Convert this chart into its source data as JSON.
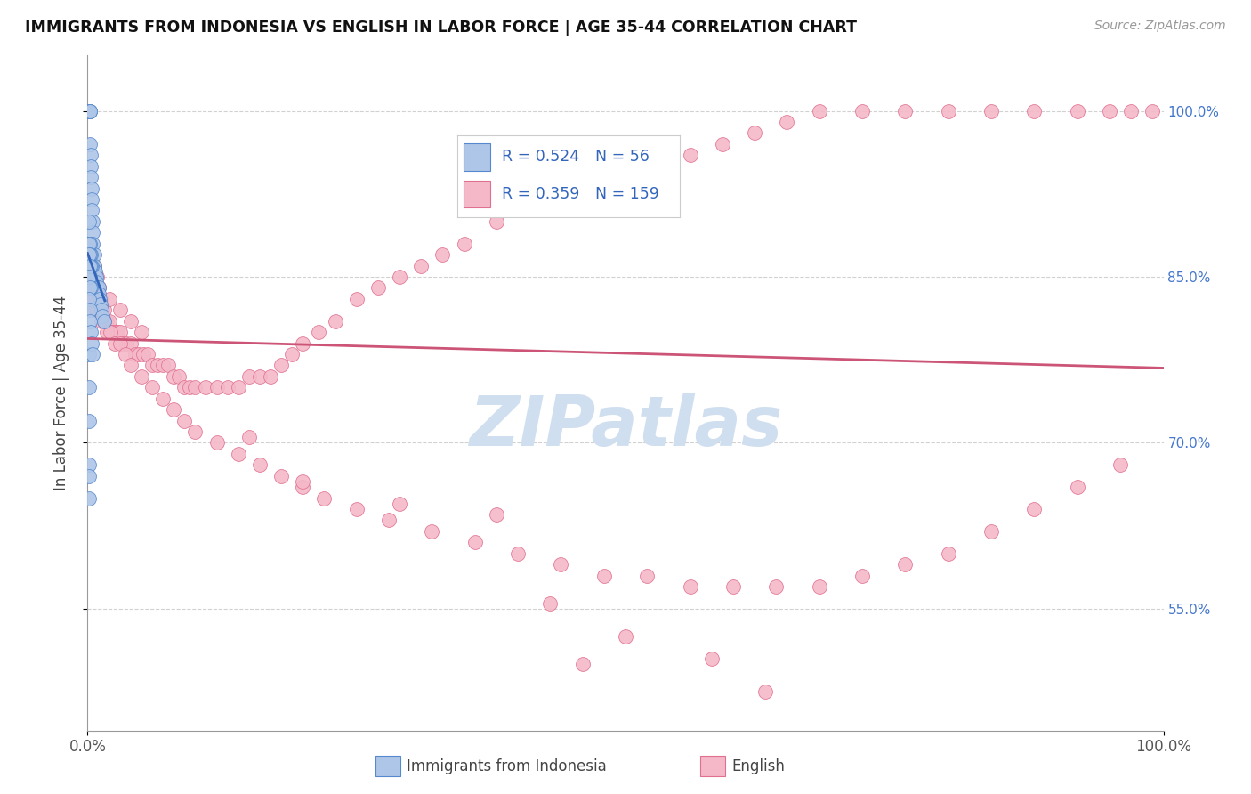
{
  "title": "IMMIGRANTS FROM INDONESIA VS ENGLISH IN LABOR FORCE | AGE 35-44 CORRELATION CHART",
  "source": "Source: ZipAtlas.com",
  "ylabel": "In Labor Force | Age 35-44",
  "xmin": 0.0,
  "xmax": 1.0,
  "ymin": 0.44,
  "ymax": 1.05,
  "ytick_values": [
    0.55,
    0.7,
    0.85,
    1.0
  ],
  "right_ytick_labels": [
    "100.0%",
    "85.0%",
    "70.0%",
    "55.0%"
  ],
  "right_ytick_values": [
    1.0,
    0.85,
    0.7,
    0.55
  ],
  "legend_r_blue": "R = 0.524",
  "legend_n_blue": "N = 56",
  "legend_r_pink": "R = 0.359",
  "legend_n_pink": "N = 159",
  "blue_fill": "#aec6e8",
  "blue_edge": "#5588cc",
  "pink_fill": "#f4b8c8",
  "pink_edge": "#e07090",
  "blue_line_color": "#3366bb",
  "pink_line_color": "#cc5577",
  "legend_text_color": "#3366bb",
  "title_color": "#111111",
  "bg_color": "#ffffff",
  "grid_color": "#cccccc",
  "watermark_color": "#d0dff0",
  "right_tick_color": "#4477cc",
  "blue_x": [
    0.001,
    0.001,
    0.001,
    0.002,
    0.002,
    0.002,
    0.002,
    0.003,
    0.003,
    0.003,
    0.004,
    0.004,
    0.004,
    0.005,
    0.005,
    0.005,
    0.006,
    0.006,
    0.007,
    0.007,
    0.008,
    0.008,
    0.009,
    0.01,
    0.01,
    0.011,
    0.012,
    0.013,
    0.014,
    0.015,
    0.001,
    0.002,
    0.003,
    0.004,
    0.001,
    0.002,
    0.003,
    0.001,
    0.002,
    0.003,
    0.001,
    0.002,
    0.001,
    0.002,
    0.001,
    0.001,
    0.001,
    0.001,
    0.001,
    0.001,
    0.001,
    0.002,
    0.002,
    0.003,
    0.004,
    0.005
  ],
  "blue_y": [
    1.0,
    1.0,
    1.0,
    1.0,
    1.0,
    1.0,
    0.97,
    0.96,
    0.95,
    0.94,
    0.93,
    0.92,
    0.91,
    0.9,
    0.89,
    0.88,
    0.87,
    0.86,
    0.855,
    0.85,
    0.85,
    0.845,
    0.84,
    0.84,
    0.835,
    0.83,
    0.825,
    0.82,
    0.815,
    0.81,
    0.9,
    0.88,
    0.87,
    0.86,
    0.88,
    0.87,
    0.86,
    0.86,
    0.85,
    0.84,
    0.87,
    0.86,
    0.85,
    0.84,
    0.78,
    0.75,
    0.72,
    0.68,
    0.67,
    0.65,
    0.83,
    0.82,
    0.81,
    0.8,
    0.79,
    0.78
  ],
  "pink_x": [
    0.001,
    0.001,
    0.001,
    0.001,
    0.001,
    0.002,
    0.002,
    0.002,
    0.002,
    0.002,
    0.003,
    0.003,
    0.003,
    0.003,
    0.004,
    0.004,
    0.004,
    0.005,
    0.005,
    0.005,
    0.006,
    0.006,
    0.006,
    0.007,
    0.007,
    0.008,
    0.008,
    0.009,
    0.009,
    0.01,
    0.01,
    0.011,
    0.012,
    0.012,
    0.013,
    0.014,
    0.015,
    0.016,
    0.017,
    0.018,
    0.02,
    0.022,
    0.024,
    0.026,
    0.028,
    0.03,
    0.033,
    0.036,
    0.04,
    0.044,
    0.048,
    0.052,
    0.056,
    0.06,
    0.065,
    0.07,
    0.075,
    0.08,
    0.085,
    0.09,
    0.095,
    0.1,
    0.11,
    0.12,
    0.13,
    0.14,
    0.15,
    0.16,
    0.17,
    0.18,
    0.19,
    0.2,
    0.215,
    0.23,
    0.25,
    0.27,
    0.29,
    0.31,
    0.33,
    0.35,
    0.38,
    0.41,
    0.44,
    0.47,
    0.5,
    0.53,
    0.56,
    0.59,
    0.62,
    0.65,
    0.68,
    0.72,
    0.76,
    0.8,
    0.84,
    0.88,
    0.92,
    0.95,
    0.97,
    0.99,
    0.003,
    0.005,
    0.007,
    0.009,
    0.011,
    0.013,
    0.015,
    0.018,
    0.021,
    0.025,
    0.03,
    0.035,
    0.04,
    0.05,
    0.06,
    0.07,
    0.08,
    0.09,
    0.1,
    0.12,
    0.14,
    0.16,
    0.18,
    0.2,
    0.22,
    0.25,
    0.28,
    0.32,
    0.36,
    0.4,
    0.44,
    0.48,
    0.52,
    0.56,
    0.6,
    0.64,
    0.68,
    0.72,
    0.76,
    0.8,
    0.84,
    0.88,
    0.92,
    0.96,
    0.005,
    0.01,
    0.02,
    0.03,
    0.04,
    0.05,
    0.5,
    0.63,
    0.43,
    0.38,
    0.29,
    0.2,
    0.15,
    0.58,
    0.46
  ],
  "pink_y": [
    0.88,
    0.87,
    0.86,
    0.85,
    0.84,
    0.88,
    0.87,
    0.86,
    0.85,
    0.84,
    0.87,
    0.86,
    0.85,
    0.84,
    0.86,
    0.85,
    0.84,
    0.86,
    0.85,
    0.84,
    0.86,
    0.85,
    0.84,
    0.85,
    0.84,
    0.85,
    0.84,
    0.85,
    0.84,
    0.84,
    0.83,
    0.83,
    0.83,
    0.82,
    0.82,
    0.82,
    0.82,
    0.81,
    0.81,
    0.81,
    0.81,
    0.8,
    0.8,
    0.8,
    0.8,
    0.8,
    0.79,
    0.79,
    0.79,
    0.78,
    0.78,
    0.78,
    0.78,
    0.77,
    0.77,
    0.77,
    0.77,
    0.76,
    0.76,
    0.75,
    0.75,
    0.75,
    0.75,
    0.75,
    0.75,
    0.75,
    0.76,
    0.76,
    0.76,
    0.77,
    0.78,
    0.79,
    0.8,
    0.81,
    0.83,
    0.84,
    0.85,
    0.86,
    0.87,
    0.88,
    0.9,
    0.91,
    0.92,
    0.93,
    0.94,
    0.95,
    0.96,
    0.97,
    0.98,
    0.99,
    1.0,
    1.0,
    1.0,
    1.0,
    1.0,
    1.0,
    1.0,
    1.0,
    1.0,
    1.0,
    0.83,
    0.83,
    0.82,
    0.82,
    0.82,
    0.81,
    0.81,
    0.8,
    0.8,
    0.79,
    0.79,
    0.78,
    0.77,
    0.76,
    0.75,
    0.74,
    0.73,
    0.72,
    0.71,
    0.7,
    0.69,
    0.68,
    0.67,
    0.66,
    0.65,
    0.64,
    0.63,
    0.62,
    0.61,
    0.6,
    0.59,
    0.58,
    0.58,
    0.57,
    0.57,
    0.57,
    0.57,
    0.58,
    0.59,
    0.6,
    0.62,
    0.64,
    0.66,
    0.68,
    0.84,
    0.84,
    0.83,
    0.82,
    0.81,
    0.8,
    0.525,
    0.475,
    0.555,
    0.635,
    0.645,
    0.665,
    0.705,
    0.505,
    0.5
  ]
}
